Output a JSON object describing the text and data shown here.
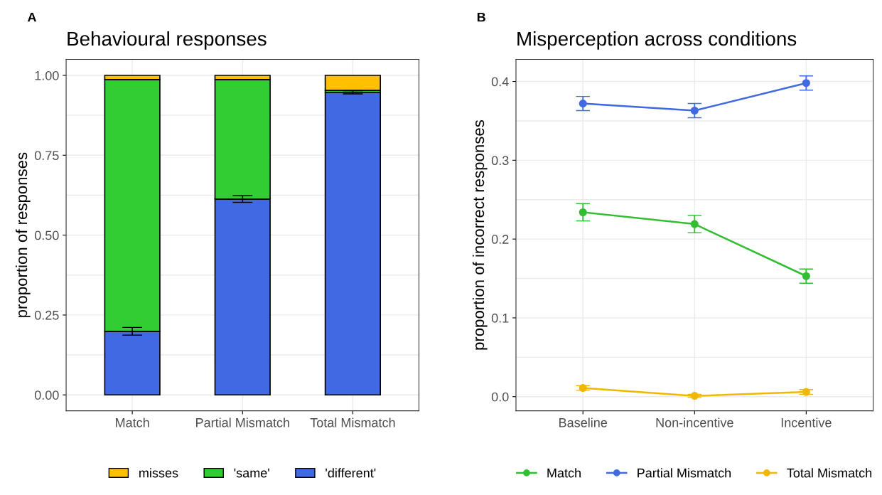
{
  "chart_data": [
    {
      "type": "bar",
      "title": "Behavioural responses",
      "ylabel": "proportion of responses",
      "annotations": [
        "A"
      ],
      "categories": [
        "Match",
        "Partial Mismatch",
        "Total Mismatch"
      ],
      "stacked": true,
      "series": [
        {
          "name": "'different'",
          "color": "#4169e1",
          "values": [
            0.199,
            0.613,
            0.947
          ],
          "errors": [
            0.012,
            0.0105,
            0.005
          ]
        },
        {
          "name": "'same'",
          "color": "#32cd32",
          "values": [
            0.788,
            0.374,
            0.006
          ]
        },
        {
          "name": "misses",
          "color": "#ffc000",
          "values": [
            0.013,
            0.013,
            0.047
          ]
        }
      ],
      "ylim": [
        -0.05,
        1.05
      ],
      "yticks": [
        {
          "value": 0,
          "label": "0.00"
        },
        0.25,
        {
          "value": 0.5,
          "label": "0.50"
        },
        0.75,
        {
          "value": 1,
          "label": "1.00"
        }
      ],
      "grid": true,
      "legend": "bottom"
    },
    {
      "type": "line",
      "title": "Misperception across conditions",
      "ylabel": "proportion of incorrect responses",
      "annotations": [
        "B"
      ],
      "categories": [
        "Baseline",
        "Non-incentive",
        "Incentive"
      ],
      "series": [
        {
          "name": "Match",
          "color": "#32be32",
          "values": [
            0.234,
            0.219,
            0.153
          ],
          "errors": [
            0.011,
            0.011,
            0.009
          ]
        },
        {
          "name": "Partial Mismatch",
          "color": "#4169e1",
          "values": [
            0.372,
            0.363,
            0.398
          ],
          "errors": [
            0.009,
            0.009,
            0.009
          ]
        },
        {
          "name": "Total Mismatch",
          "color": "#f0b800",
          "values": [
            0.011,
            0.001,
            0.006
          ],
          "errors": [
            0.003,
            0.002,
            0.003
          ]
        }
      ],
      "ylim": [
        -0.018,
        0.428
      ],
      "yticks": [
        {
          "value": 0,
          "label": "0.0"
        },
        0.1,
        0.2,
        0.3,
        0.4
      ],
      "grid": true,
      "legend": "bottom",
      "marker": "circle",
      "line_style": "solid"
    }
  ]
}
